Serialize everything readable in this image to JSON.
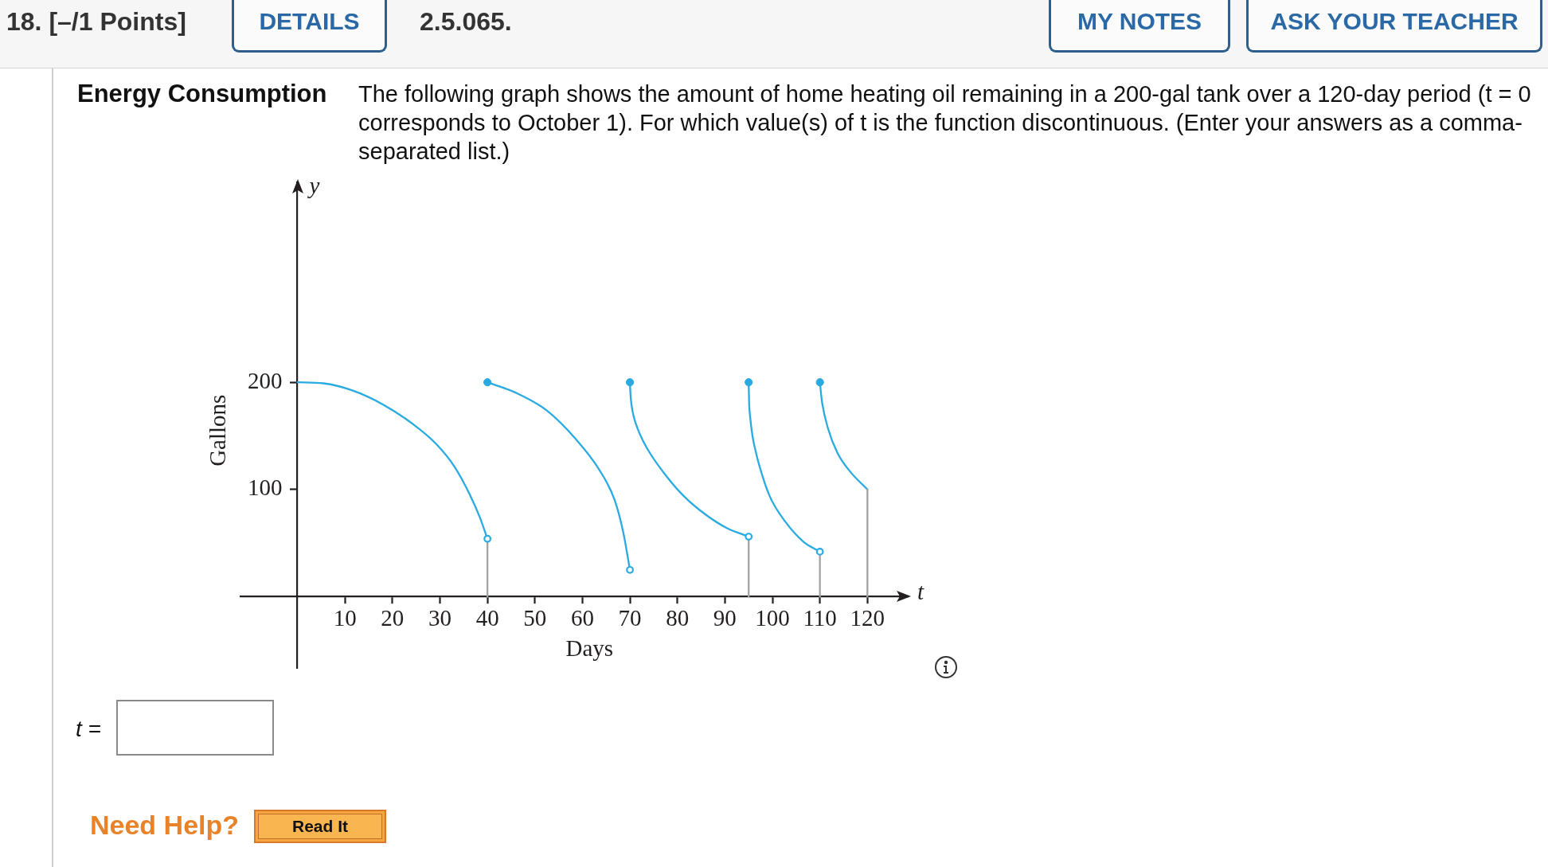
{
  "chart_data": {
    "type": "line",
    "title": "Energy Consumption",
    "subtitle": "The following graph shows the amount of home heating oil remaining in a 200-gal tank over a 120-day period (t = 0 corresponds to October 1). For which value(s) of t is the function discontinuous. (Enter your answers as a comma-separated list.)",
    "xlabel": "Days",
    "ylabel": "Gallons",
    "annotations": [
      "18. [–/1 Points]",
      "DETAILS",
      "2.5.065.",
      "MY NOTES",
      "ASK YOUR TEACHER",
      "t =",
      "Need Help?",
      "Read It",
      "y",
      "t"
    ],
    "xlim": [
      -12,
      128.5
    ],
    "xticks": [
      10,
      20,
      30,
      40,
      50,
      60,
      70,
      80,
      90,
      100,
      110,
      120
    ],
    "ylim": [
      -66.5,
      386.5
    ],
    "yticks": [
      100,
      200
    ],
    "marker": "none",
    "series": [
      {
        "color": "#a3a3a3",
        "x": [
          40,
          40
        ],
        "values": [
          0,
          54
        ]
      },
      {
        "color": "#a3a3a3",
        "x": [
          95,
          95
        ],
        "values": [
          0,
          56
        ]
      },
      {
        "color": "#a3a3a3",
        "x": [
          110,
          110
        ],
        "values": [
          0,
          42
        ]
      },
      {
        "color": "#a3a3a3",
        "x": [
          120,
          120
        ],
        "values": [
          0,
          100
        ]
      },
      {
        "color": "#29abe2",
        "x": [
          0,
          5.5,
          11.8,
          18.1,
          24.3,
          29.3,
          33.1,
          36.2,
          38.4,
          40
        ],
        "values": [
          200,
          199,
          192,
          179,
          161,
          142,
          121,
          96,
          74,
          54
        ]
      },
      {
        "color": "#29abe2",
        "x": [
          40,
          46.1,
          52.4,
          58.6,
          63.6,
          66.8,
          68.6,
          70
        ],
        "values": [
          200,
          190,
          174,
          147,
          118,
          90,
          60,
          25
        ]
      },
      {
        "color": "#29abe2",
        "x": [
          70,
          70.1,
          70.3,
          70.8,
          71.6,
          72.8,
          74.2,
          77.4,
          81.3,
          85.8,
          90.4,
          95
        ],
        "values": [
          200,
          190,
          180,
          168,
          157,
          145,
          134,
          114,
          94,
          77,
          64,
          56
        ]
      },
      {
        "color": "#29abe2",
        "x": [
          95,
          95.1,
          95.3,
          95.8,
          96.4,
          97.2,
          99.4,
          102.7,
          106.6,
          110
        ],
        "values": [
          200,
          180,
          168,
          150,
          137,
          123,
          94,
          70,
          51,
          42
        ]
      },
      {
        "color": "#29abe2",
        "x": [
          110,
          110.4,
          111.7,
          113.7,
          116.3,
          120
        ],
        "values": [
          200,
          183,
          157,
          134,
          117,
          100
        ]
      },
      {
        "type": "scatter",
        "color": "#29abe2",
        "marker": "circle",
        "x": [
          40,
          70,
          95,
          110
        ],
        "values": [
          200,
          200,
          200,
          200
        ]
      },
      {
        "type": "scatter",
        "color": "#29abe2",
        "marker": "circle",
        "x": [
          40,
          70,
          95,
          110
        ],
        "values": [
          54,
          25,
          56,
          42
        ]
      }
    ]
  }
}
